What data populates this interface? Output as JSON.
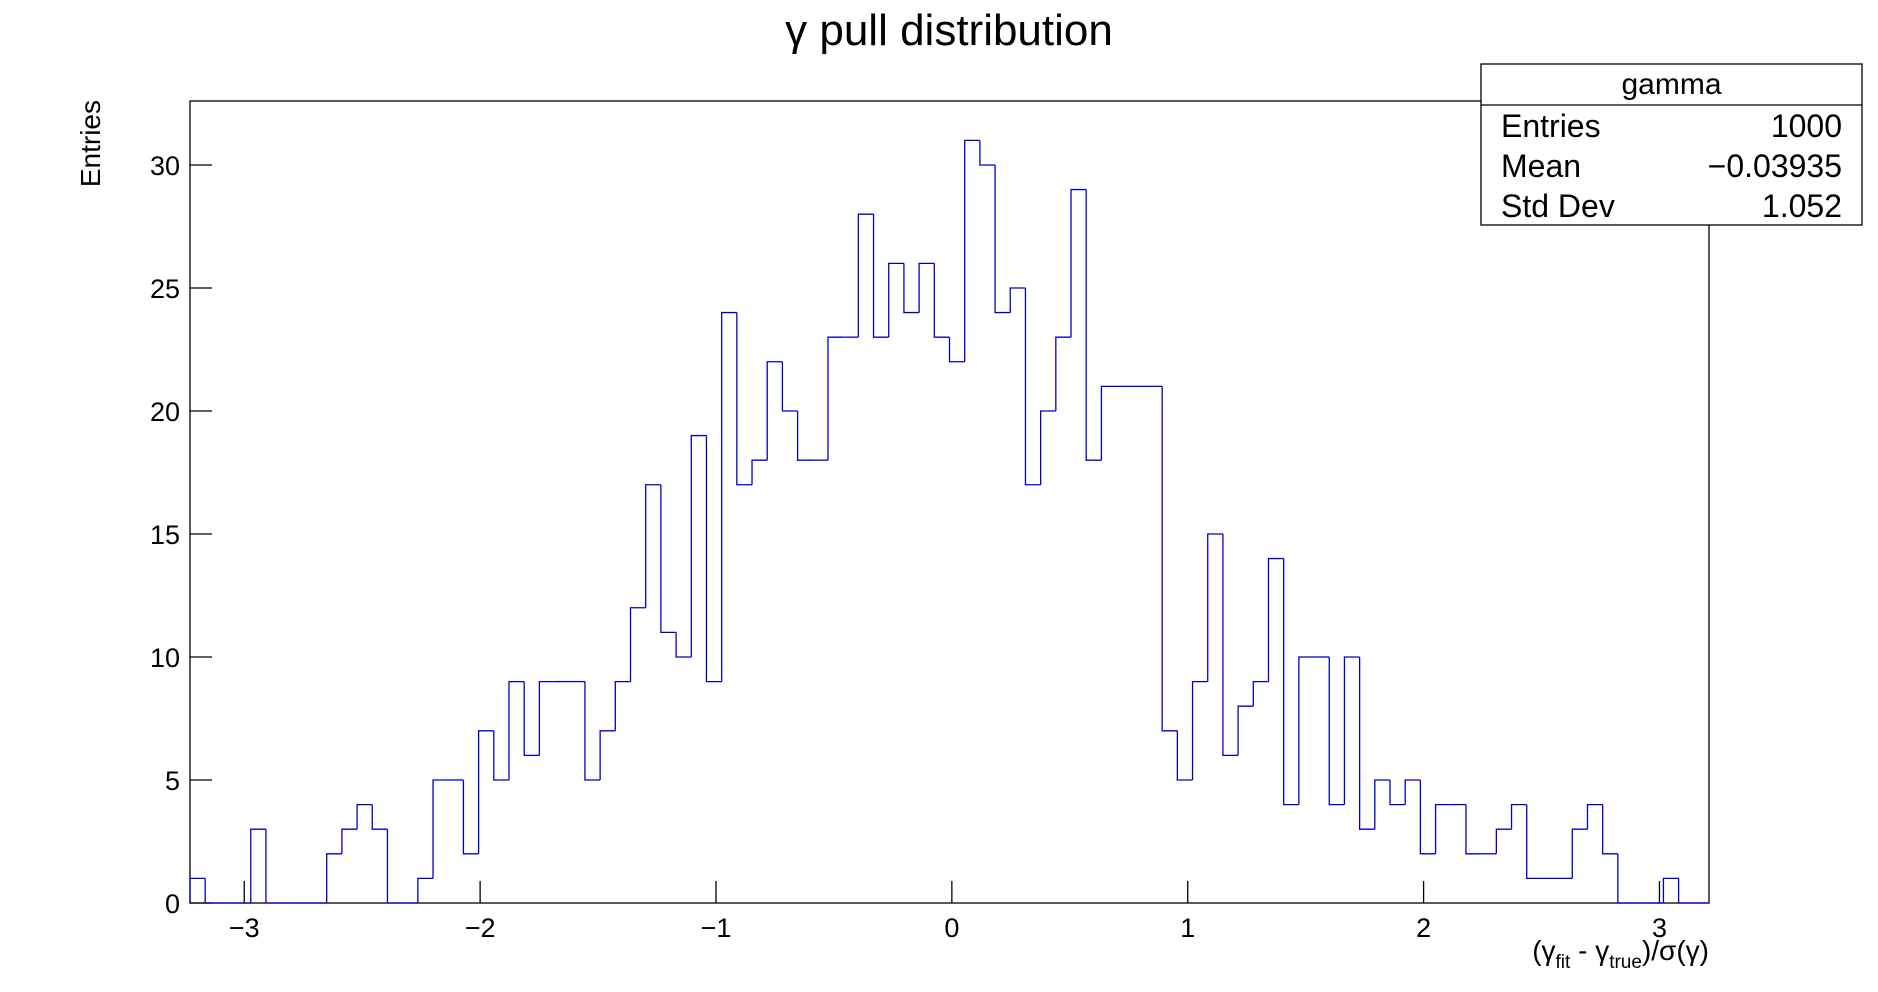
{
  "chart_data": {
    "type": "histogram",
    "title": "γ pull distribution",
    "ylabel": "Entries",
    "xlabel_parts": [
      {
        "text": "(γ"
      },
      {
        "text": "fit",
        "sub": true
      },
      {
        "text": " - γ"
      },
      {
        "text": "true",
        "sub": true
      },
      {
        "text": ")/σ(γ)"
      }
    ],
    "color": "#0000cc",
    "bins": [
      -3.23,
      -3.1656,
      -3.1012,
      -3.0368,
      -2.9724,
      -2.908,
      -2.8436,
      -2.7792,
      -2.7148,
      -2.6504,
      -2.586,
      -2.5216,
      -2.4572,
      -2.3928,
      -2.3284,
      -2.264,
      -2.1996,
      -2.1352,
      -2.0708,
      -2.0064,
      -1.942,
      -1.8776,
      -1.8132,
      -1.7488,
      -1.6844,
      -1.62,
      -1.5556,
      -1.4912,
      -1.4268,
      -1.3624,
      -1.298,
      -1.2336,
      -1.1692,
      -1.1048,
      -1.0404,
      -0.976,
      -0.9116,
      -0.8472,
      -0.7828,
      -0.7184,
      -0.654,
      -0.5896,
      -0.5252,
      -0.4608,
      -0.3964,
      -0.332,
      -0.2676,
      -0.2032,
      -0.1388,
      -0.0744,
      -0.01,
      0.0544,
      0.1188,
      0.1832,
      0.2476,
      0.312,
      0.3764,
      0.4408,
      0.5052,
      0.5696,
      0.634,
      0.6984,
      0.7628,
      0.8272,
      0.8916,
      0.956,
      1.0204,
      1.0848,
      1.1492,
      1.2136,
      1.278,
      1.3424,
      1.4068,
      1.4712,
      1.5356,
      1.6,
      1.6644,
      1.7288,
      1.7932,
      1.8576,
      1.922,
      1.9864,
      2.0508,
      2.1152,
      2.1796,
      2.244,
      2.3084,
      2.3728,
      2.4372,
      2.5016,
      2.566,
      2.6304,
      2.6948,
      2.7592,
      2.8236,
      2.888,
      2.9524,
      3.0168,
      3.0812,
      3.1456,
      3.21
    ],
    "values": [
      1,
      0,
      0,
      0,
      3,
      0,
      0,
      0,
      0,
      2,
      3,
      4,
      3,
      0,
      0,
      1,
      5,
      5,
      2,
      7,
      5,
      9,
      6,
      9,
      9,
      9,
      5,
      7,
      9,
      12,
      17,
      11,
      10,
      19,
      9,
      24,
      17,
      18,
      22,
      20,
      18,
      18,
      23,
      23,
      28,
      23,
      26,
      24,
      26,
      23,
      22,
      31,
      30,
      24,
      25,
      17,
      20,
      23,
      29,
      18,
      21,
      21,
      21,
      21,
      7,
      5,
      9,
      15,
      6,
      8,
      9,
      14,
      4,
      10,
      10,
      4,
      10,
      3,
      5,
      4,
      5,
      2,
      4,
      4,
      2,
      2,
      3,
      4,
      1,
      1,
      1,
      3,
      4,
      2,
      0,
      0,
      0,
      1,
      0,
      0
    ],
    "xlim": [
      -3.23,
      3.21
    ],
    "ylim": [
      0,
      32.6
    ],
    "xticks": [
      {
        "value": -3,
        "label": "−3"
      },
      {
        "value": -2,
        "label": "−2"
      },
      {
        "value": -1,
        "label": "−1"
      },
      0,
      1,
      2,
      3
    ],
    "yticks": [
      0,
      5,
      10,
      15,
      20,
      25,
      30
    ],
    "stats": {
      "title": "gamma",
      "rows": [
        {
          "label": "Entries",
          "value": "1000"
        },
        {
          "label": "Mean",
          "value": "−0.03935"
        },
        {
          "label": "Std Dev",
          "value": "1.052"
        }
      ]
    }
  }
}
